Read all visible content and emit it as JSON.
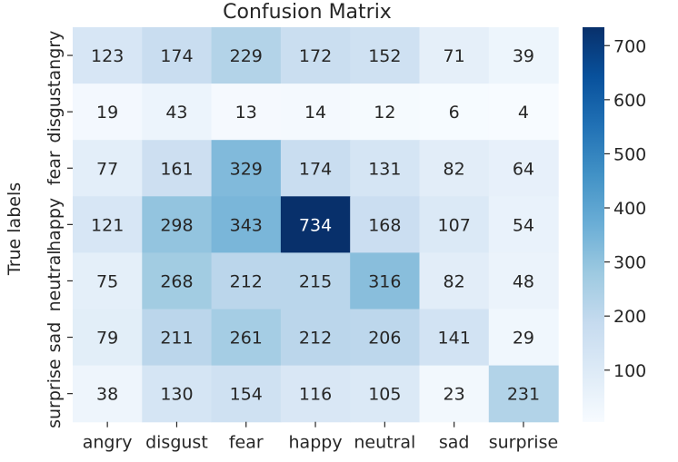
{
  "chart_data": {
    "type": "heatmap",
    "title": "Confusion Matrix",
    "xlabel": "",
    "ylabel": "True labels",
    "x_categories": [
      "angry",
      "disgust",
      "fear",
      "happy",
      "neutral",
      "sad",
      "surprise"
    ],
    "y_categories": [
      "angry",
      "disgust",
      "fear",
      "happy",
      "neutral",
      "sad",
      "surprise"
    ],
    "values": [
      [
        123,
        174,
        229,
        172,
        152,
        71,
        39
      ],
      [
        19,
        43,
        13,
        14,
        12,
        6,
        4
      ],
      [
        77,
        161,
        329,
        174,
        131,
        82,
        64
      ],
      [
        121,
        298,
        343,
        734,
        168,
        107,
        54
      ],
      [
        75,
        268,
        212,
        215,
        316,
        82,
        48
      ],
      [
        79,
        211,
        261,
        212,
        206,
        141,
        29
      ],
      [
        38,
        130,
        154,
        116,
        105,
        23,
        231
      ]
    ],
    "colormap": "Blues",
    "color_low": "#f7fbff",
    "color_high": "#08306b",
    "vmin": 4,
    "vmax": 734,
    "colorbar_ticks": [
      100,
      200,
      300,
      400,
      500,
      600,
      700
    ],
    "annotations": true
  }
}
